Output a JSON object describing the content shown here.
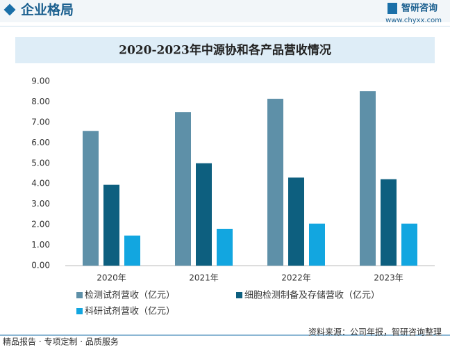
{
  "header": {
    "title": "企业格局"
  },
  "logo": {
    "name": "智研咨询",
    "url": "www.chyxx.com"
  },
  "footer": {
    "slogan": "精品报告 · 专项定制 · 品质服务",
    "source": "资料来源：公司年报，智研咨询整理"
  },
  "chart_data": {
    "type": "bar",
    "title": "2020-2023年中源协和各产品营收情况",
    "categories": [
      "2020年",
      "2021年",
      "2022年",
      "2023年"
    ],
    "series": [
      {
        "name": "检测试剂营收（亿元）",
        "color": "#5e90a8",
        "values": [
          6.58,
          7.5,
          8.15,
          8.52
        ]
      },
      {
        "name": "细胞检测制备及存储营收（亿元）",
        "color": "#0d5f7f",
        "values": [
          3.95,
          5.0,
          4.3,
          4.22
        ]
      },
      {
        "name": "科研试剂营收（亿元）",
        "color": "#12a6e0",
        "values": [
          1.47,
          1.8,
          2.05,
          2.05
        ]
      }
    ],
    "ylim": [
      0,
      9
    ],
    "yticks": [
      {
        "value": 0,
        "label": "0.00"
      },
      {
        "value": 1,
        "label": "1.00"
      },
      {
        "value": 2,
        "label": "2.00"
      },
      {
        "value": 3,
        "label": "3.00"
      },
      {
        "value": 4,
        "label": "4.00"
      },
      {
        "value": 5,
        "label": "5.00"
      },
      {
        "value": 6,
        "label": "6.00"
      },
      {
        "value": 7,
        "label": "7.00"
      },
      {
        "value": 8,
        "label": "8.00"
      },
      {
        "value": 9,
        "label": "9.00"
      }
    ],
    "grid": false
  }
}
